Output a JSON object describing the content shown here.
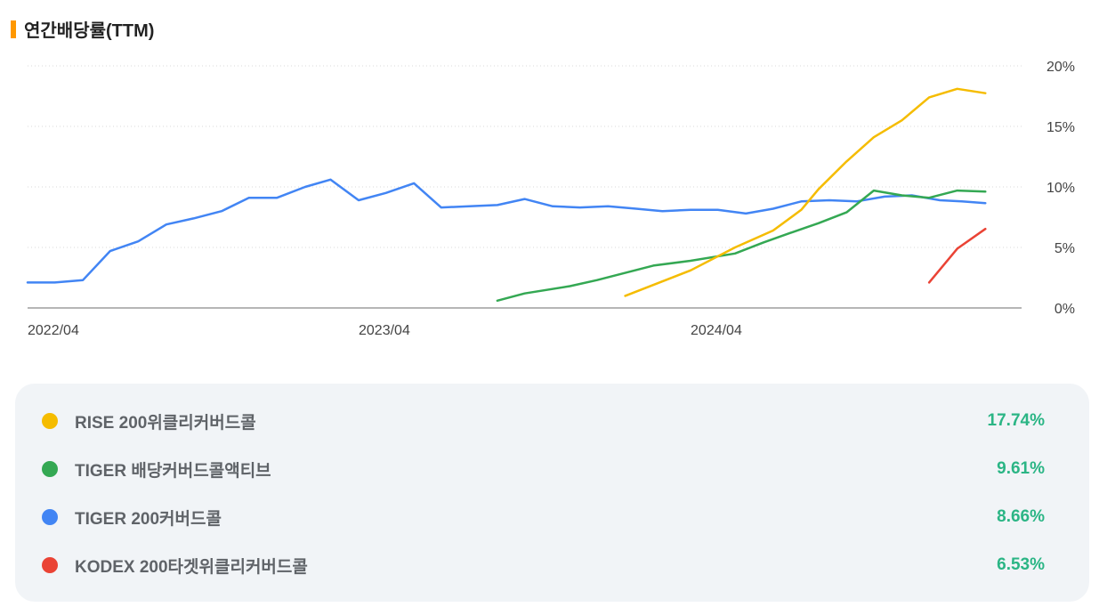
{
  "header": {
    "title": "연간배당률(TTM)"
  },
  "chart_data": {
    "type": "line",
    "title": "연간배당률(TTM)",
    "x_tick_labels": [
      "2022/04",
      "2023/04",
      "2024/04"
    ],
    "y_tick_labels": [
      "0%",
      "5%",
      "10%",
      "15%",
      "20%"
    ],
    "ylim": [
      0,
      20
    ],
    "y_axis_position": "right",
    "grid": "horizontal dotted",
    "series": [
      {
        "name": "RISE 200위클리커버드콜",
        "color": "#f5bc00",
        "last_value": "17.74%",
        "points": [
          [
            "2024/01/20",
            1.0
          ],
          [
            "2024/04/01",
            3.1
          ],
          [
            "2024/05/20",
            5.0
          ],
          [
            "2024/07/01",
            6.4
          ],
          [
            "2024/08/01",
            8.1
          ],
          [
            "2024/08/20",
            9.8
          ],
          [
            "2024/09/20",
            12.1
          ],
          [
            "2024/10/20",
            14.1
          ],
          [
            "2024/11/20",
            15.5
          ],
          [
            "2024/12/20",
            17.4
          ],
          [
            "2025/01/20",
            18.1
          ],
          [
            "2025/02/20",
            17.74
          ]
        ]
      },
      {
        "name": "TIGER 배당커버드콜액티브",
        "color": "#34a853",
        "last_value": "9.61%",
        "points": [
          [
            "2023/09/01",
            0.6
          ],
          [
            "2023/10/01",
            1.2
          ],
          [
            "2023/11/20",
            1.8
          ],
          [
            "2023/12/20",
            2.3
          ],
          [
            "2024/02/20",
            3.5
          ],
          [
            "2024/04/01",
            3.9
          ],
          [
            "2024/05/20",
            4.5
          ],
          [
            "2024/06/20",
            5.4
          ],
          [
            "2024/07/20",
            6.2
          ],
          [
            "2024/08/20",
            7.0
          ],
          [
            "2024/09/20",
            7.9
          ],
          [
            "2024/10/20",
            9.7
          ],
          [
            "2024/11/20",
            9.3
          ],
          [
            "2024/12/20",
            9.1
          ],
          [
            "2025/01/20",
            9.7
          ],
          [
            "2025/02/20",
            9.61
          ]
        ]
      },
      {
        "name": "TIGER 200커버드콜",
        "color": "#4285f4",
        "last_value": "8.66%",
        "points": [
          [
            "2022/04/01",
            2.1
          ],
          [
            "2022/05/01",
            2.1
          ],
          [
            "2022/06/01",
            2.3
          ],
          [
            "2022/07/01",
            4.7
          ],
          [
            "2022/08/01",
            5.5
          ],
          [
            "2022/09/01",
            6.9
          ],
          [
            "2022/10/01",
            7.4
          ],
          [
            "2022/11/01",
            8.0
          ],
          [
            "2022/12/01",
            9.1
          ],
          [
            "2023/01/01",
            9.1
          ],
          [
            "2023/02/01",
            10.0
          ],
          [
            "2023/03/01",
            10.6
          ],
          [
            "2023/04/01",
            8.9
          ],
          [
            "2023/05/01",
            9.5
          ],
          [
            "2023/06/01",
            10.3
          ],
          [
            "2023/07/01",
            8.3
          ],
          [
            "2023/08/01",
            8.4
          ],
          [
            "2023/09/01",
            8.5
          ],
          [
            "2023/10/01",
            9.0
          ],
          [
            "2023/11/01",
            8.4
          ],
          [
            "2023/12/01",
            8.3
          ],
          [
            "2024/01/01",
            8.4
          ],
          [
            "2024/02/01",
            8.2
          ],
          [
            "2024/03/01",
            8.0
          ],
          [
            "2024/04/01",
            8.1
          ],
          [
            "2024/05/01",
            8.1
          ],
          [
            "2024/06/01",
            7.8
          ],
          [
            "2024/07/01",
            8.2
          ],
          [
            "2024/08/01",
            8.8
          ],
          [
            "2024/09/01",
            8.9
          ],
          [
            "2024/10/01",
            8.8
          ],
          [
            "2024/11/01",
            9.2
          ],
          [
            "2024/12/01",
            9.3
          ],
          [
            "2025/01/01",
            8.9
          ],
          [
            "2025/01/25",
            8.8
          ],
          [
            "2025/02/20",
            8.66
          ]
        ]
      },
      {
        "name": "KODEX 200타겟위클리커버드콜",
        "color": "#ea4335",
        "last_value": "6.53%",
        "points": [
          [
            "2024/12/20",
            2.1
          ],
          [
            "2025/01/20",
            4.9
          ],
          [
            "2025/02/20",
            6.53
          ]
        ]
      }
    ]
  }
}
